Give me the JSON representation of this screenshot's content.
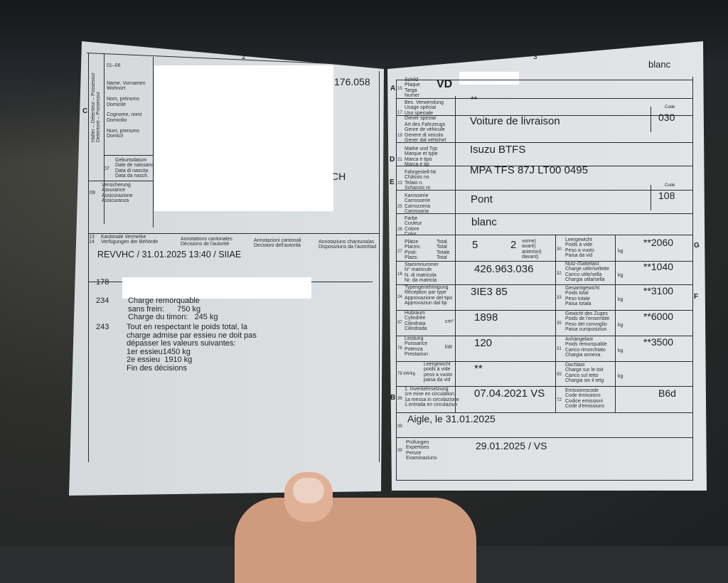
{
  "left_page": {
    "page_number": "2",
    "section_letter": "C",
    "holder_vertical_label": "Halter – Détenteur – Possessur\nDetentore – Possessur",
    "field_01_06": {
      "number": "01–06",
      "labels": "Name, Vornamen\nWohnort\n\nNom, prénoms\nDomicile\n\nCognome, nomi\nDomicilio\n\nNum, prenums\nDomicil"
    },
    "holder_number_partial": "176.058",
    "country_partial": "CH",
    "field_07": {
      "number": "07",
      "labels": "Geburtsdatum\nDate de naissanc\nData di nascita\nData da nasch."
    },
    "field_09": {
      "number": "09",
      "labels": "Versicherung\nAssurance\nAssicurazione\nAssicuranza"
    },
    "field_13_14": {
      "numbers": "13\n14",
      "de": "Kantonale Vermerke\nVerfügungen der Behörde",
      "fr": "Annotations cantonales\nDécisions de l'autorité",
      "it": "Annotazioni cantonali\nDecisioni dell'autorità",
      "rm": "Annotaziuns chantunalas\nDisposiziuns da l'autoritad"
    },
    "authority_entry": "REVVHC / 31.01.2025 13:40 / SIIAE",
    "decisions": [
      {
        "code": "178",
        "text": ""
      },
      {
        "code": "234",
        "text": "Charge remorquable\nsans frein:      750 kg\nCharge du timon:   245 kg"
      },
      {
        "code": "243",
        "text": "Tout en respectant le poids total, la\ncharge admise par essieu ne doit pas\ndépasser les valeurs suivantes:\n1er essieu1450 kg\n2e essieu  1910 kg\nFin des décisions"
      }
    ]
  },
  "right_page": {
    "page_number": "3",
    "top_color": "blanc",
    "side_letters": {
      "A": "A",
      "D": "D",
      "E": "E",
      "B": "B",
      "G": "G",
      "F": "F"
    },
    "rows": [
      {
        "number": "15",
        "labels": "Schild\nPlaque\nTarga\nNumer",
        "value": "VD"
      },
      {
        "number": "17",
        "labels": "Bes. Verwendung\nUsage spécial\nUso speciale\nDiever spezial",
        "value": "**"
      },
      {
        "number": "19",
        "labels": "Art des Fahrzeugs\nGenre de véhicule\nGenere di veicolo\nGener dal vehichel",
        "value": "Voiture de livraison",
        "code_label": "Code",
        "code": "030"
      },
      {
        "number": "21",
        "labels": "Marke und Typ\nMarque et type\nMarca e tipo\nMarca e tip",
        "value": "Isuzu BTFS"
      },
      {
        "number": "23",
        "labels": "Fahrgestell-Nr.\nChâssis no\nTelaio n.\nSchassis nr.",
        "value": "MPA TFS 87J LT00 0495"
      },
      {
        "number": "25",
        "labels": "Karosserie\nCarrosserie\nCarrozzeria\nCarossaria",
        "value": "Pont",
        "code_label": "Code",
        "code": "108"
      },
      {
        "number": "26",
        "labels": "Farbe\nCouleur\nColore\nColur",
        "value": "blanc"
      }
    ],
    "seats": {
      "number": "27",
      "labels": "Plätze\nPlaces:\nPosti:\nPlazs:",
      "total_labels": "Total\nTotal\nTotale\nTotal",
      "total": "5",
      "front": "2",
      "front_labels": "vorne)\navant)\nanteriori)\ndavant)"
    },
    "left_rows": [
      {
        "number": "18",
        "labels": "Stammnummer\nN° matricule\nN. di matricola\nNr. da matricla",
        "unit": "",
        "value": "426.963.036"
      },
      {
        "number": "24",
        "labels": "Typengenehmigung\nRéception par type\nApprovazione del tipo\nApprovaziun dal tip",
        "unit": "",
        "value": "3IE3 85"
      },
      {
        "number": "37",
        "labels": "Hubraum\nCylindrée\nCilindrata\nCilindrada",
        "unit": "cm³",
        "value": "1898"
      },
      {
        "number": "76",
        "labels": "Leistung\nPuissance\nPotenza\nPrestaziun",
        "unit": "kW",
        "value": "120"
      },
      {
        "number": "78 kW/kg",
        "labels": "Leergewicht\npoids à vide\npeso a vuoto\npaisa da vid",
        "unit": "",
        "value": "**"
      },
      {
        "number": "36",
        "labels": "1. Inverkehrsetzung\n1re mise en circulation\n1a messa in circolazione\n1.entrada en circulaziun",
        "unit": "",
        "value": "07.04.2021 VS"
      }
    ],
    "right_rows": [
      {
        "number": "30",
        "labels": "Leergewicht\nPoids à vide\nPeso a vuoto\nPaisa da vid",
        "unit": "kg",
        "value": "**2060"
      },
      {
        "number": "32",
        "labels": "Nutz-/Sattellast\nCharge utile/sellette\nCarico utile/sella\nChargia utila/sella",
        "unit": "kg",
        "value": "**1040"
      },
      {
        "number": "33",
        "labels": "Gesamtgewicht\nPoids total\nPeso totale\nPaisa totala",
        "unit": "kg",
        "value": "**3100"
      },
      {
        "number": "35",
        "labels": "Gewicht des Zuges\nPoids de l'ensemble\nPeso del convoglio\nPaisa cumposiziun",
        "unit": "kg",
        "value": "**6000"
      },
      {
        "number": "31",
        "labels": "Anhängelast\nPoids remorquable\nCarico rimorchiato\nChargia annexa",
        "unit": "kg",
        "value": "**3500"
      },
      {
        "number": "55",
        "labels": "Dachlast\nCharge sur le toit\nCarico sul tetto\nChargia sin il tetg",
        "unit": "kg",
        "value": ""
      },
      {
        "number": "72",
        "labels": "Emissionscode\nCode émissions\nCodice emissioni\nCode d'emissiuns",
        "unit": "",
        "value": "B6d"
      }
    ],
    "field_38": {
      "number": "38",
      "value": "Aigle, le 31.01.2025"
    },
    "field_39": {
      "number": "39",
      "labels": "Prüfungen\nExpertises\nPerizie\nExaminaziuns",
      "value": "29.01.2025 / VS"
    }
  }
}
